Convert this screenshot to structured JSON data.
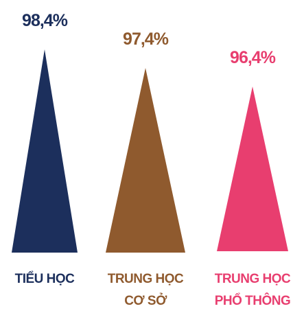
{
  "chart_data": {
    "type": "bar",
    "categories": [
      {
        "lines": [
          "TIỂU HỌC"
        ]
      },
      {
        "lines": [
          "TRUNG HỌC",
          "CƠ SỞ"
        ]
      },
      {
        "lines": [
          "TRUNG HỌC",
          "PHỔ THÔNG"
        ]
      }
    ],
    "values": [
      98.4,
      97.4,
      96.4
    ],
    "value_labels": [
      "98,4%",
      "97,4%",
      "96,4%"
    ],
    "colors": [
      "#1c2f5c",
      "#8f5a2e",
      "#e83e6f"
    ],
    "ylim": [
      0,
      100
    ],
    "grid": false,
    "legend": "none"
  }
}
